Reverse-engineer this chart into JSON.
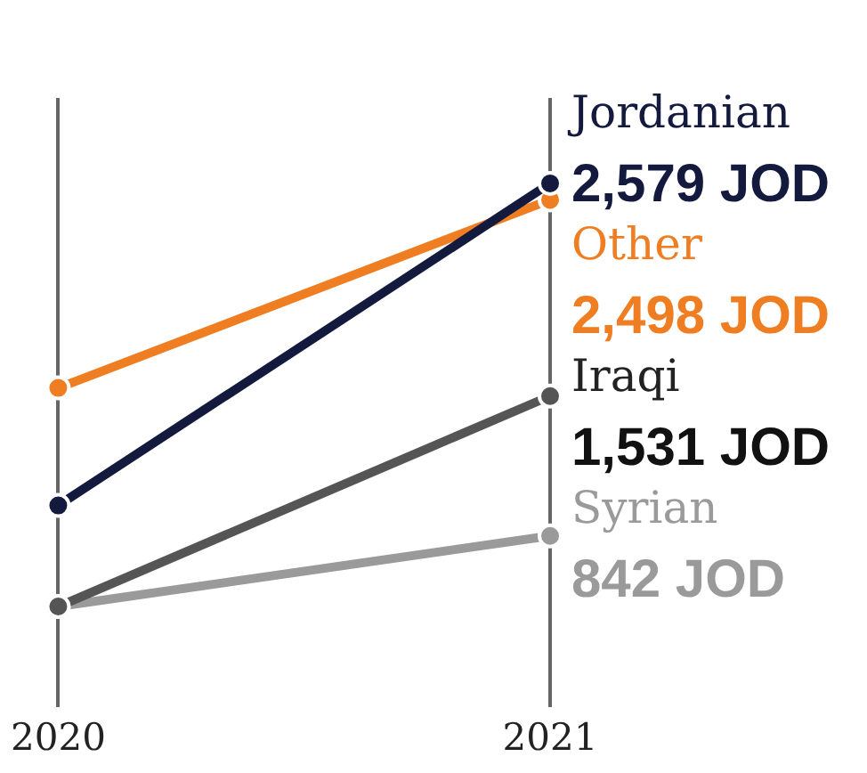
{
  "chart_data": {
    "type": "line",
    "categories": [
      "2020",
      "2021"
    ],
    "series": [
      {
        "name": "Jordanian",
        "color": "#141a3d",
        "values": [
          992,
          2579
        ],
        "value_labels": [
          null,
          "2,579 JOD"
        ]
      },
      {
        "name": "Other",
        "color": "#ef7d22",
        "values": [
          1571,
          2498
        ],
        "value_labels": [
          null,
          "2,498 JOD"
        ]
      },
      {
        "name": "Iraqi",
        "color": "#555555",
        "values": [
          494,
          1531
        ],
        "value_labels": [
          null,
          "1,531 JOD"
        ]
      },
      {
        "name": "Syrian",
        "color": "#9a9a9a",
        "values": [
          494,
          842
        ],
        "value_labels": [
          null,
          "842 JOD"
        ]
      }
    ],
    "grid": "x",
    "legend": false,
    "marker": "circle",
    "line_style": "solid"
  }
}
